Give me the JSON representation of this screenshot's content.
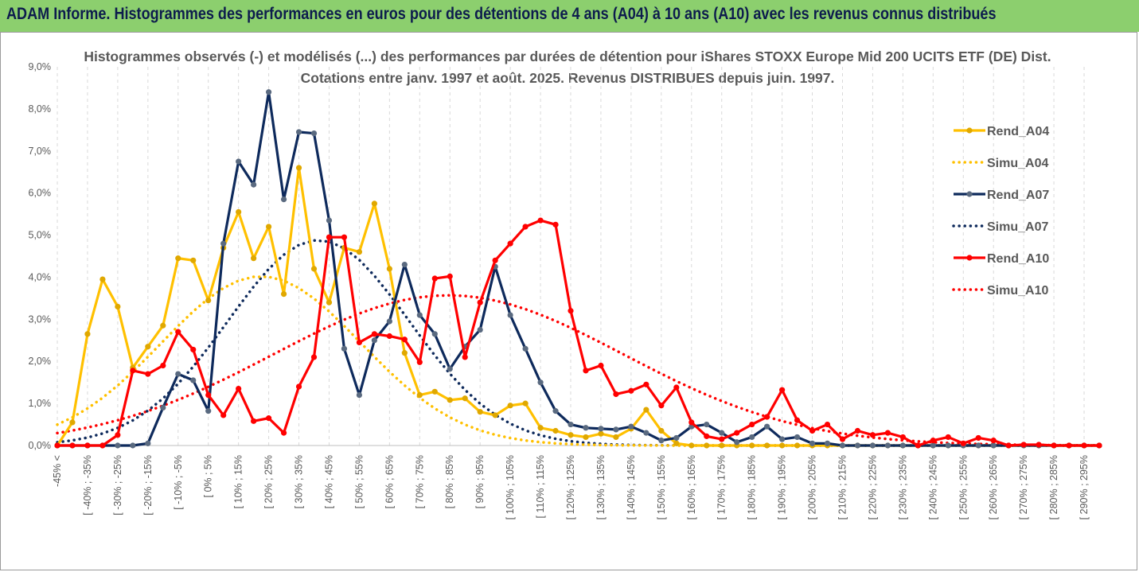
{
  "banner": {
    "title": "ADAM Informe. Histogrammes des performances en euros pour des détentions de 4 ans (A04) à 10 ans (A10) avec les revenus connus distribués"
  },
  "colors": {
    "banner_bg": "#8ccf6e",
    "banner_text": "#0d1c4d",
    "A04": "#ffc000",
    "A07": "#0e2a5c",
    "A10": "#ff0000",
    "grid": "#d9d9d9"
  },
  "chart_data": {
    "type": "line",
    "title": "Histogrammes observés (-) et modélisés (...) des performances par durées de détention pour iShares STOXX Europe Mid 200 UCITS ETF (DE) Dist.",
    "subtitle": "Cotations entre janv. 1997 et août. 2025. Revenus DISTRIBUES depuis juin. 1997.",
    "y_ticks": [
      "0,0%",
      "1,0%",
      "2,0%",
      "3,0%",
      "4,0%",
      "5,0%",
      "6,0%",
      "7,0%",
      "8,0%",
      "9,0%"
    ],
    "ylim": [
      0,
      9
    ],
    "y_unit": "%",
    "grid": "vertical dashed",
    "legend_position": "right",
    "x_labels_shown": [
      "-45% <",
      "[ -40% ; -35%",
      "[ -30% ; -25%",
      "[ -20% ; -15%",
      "[ -10% ; -5%",
      "[ 0% ; 5%",
      "[ 10% ; 15%",
      "[ 20% ; 25%",
      "[ 30% ; 35%",
      "[ 40% ; 45%",
      "[ 50% ; 55%",
      "[ 60% ; 65%",
      "[ 70% ; 75%",
      "[ 80% ; 85%",
      "[ 90% ; 95%",
      "[ 100% ; 105%",
      "[ 110% ; 115%",
      "[ 120% ; 125%",
      "[ 130% ; 135%",
      "[ 140% ; 145%",
      "[ 150% ; 155%",
      "[ 160% ; 165%",
      "[ 170% ; 175%",
      "[ 180% ; 185%",
      "[ 190% ; 195%",
      "[ 200% ; 205%",
      "[ 210% ; 215%",
      "[ 220% ; 225%",
      "[ 230% ; 235%",
      "[ 240% ; 245%",
      "[ 250% ; 255%",
      "[ 260% ; 265%",
      "[ 270% ; 275%",
      "[ 280% ; 285%",
      "[ 290% ; 295%"
    ],
    "x_category_count": 70,
    "series": [
      {
        "name": "Rend_A04",
        "style": "solid",
        "color": "#ffc000",
        "values": [
          0.0,
          0.55,
          2.65,
          3.95,
          3.3,
          1.85,
          2.35,
          2.85,
          4.45,
          4.4,
          3.45,
          4.7,
          5.55,
          4.45,
          5.2,
          3.6,
          6.6,
          4.2,
          3.4,
          4.7,
          4.6,
          5.75,
          4.2,
          2.2,
          1.2,
          1.28,
          1.08,
          1.12,
          0.8,
          0.72,
          0.95,
          1.0,
          0.42,
          0.35,
          0.25,
          0.2,
          0.28,
          0.2,
          0.4,
          0.85,
          0.35,
          0.05,
          0.0,
          0.0,
          0.0,
          0.0,
          0.0,
          0.0,
          0.0,
          0.0,
          0.0,
          0.0,
          0.0,
          0.0,
          0.0,
          0.0,
          0.0,
          0.0,
          0.0,
          0.0,
          0.0,
          0.0,
          0.0,
          0.0,
          0.0,
          0.0,
          0.0,
          0.0,
          0.0,
          0.0
        ]
      },
      {
        "name": "Simu_A04",
        "style": "dotted",
        "color": "#ffc000",
        "mean_pct": 20,
        "std_pct": 33,
        "peak": 4.02
      },
      {
        "name": "Rend_A07",
        "style": "solid",
        "color": "#0e2a5c",
        "values": [
          0.0,
          0.0,
          0.0,
          0.0,
          0.0,
          0.0,
          0.05,
          0.9,
          1.7,
          1.55,
          0.82,
          4.8,
          6.75,
          6.2,
          8.4,
          5.85,
          7.45,
          7.42,
          5.35,
          2.3,
          1.2,
          2.5,
          2.95,
          4.3,
          3.1,
          2.65,
          1.82,
          2.35,
          2.75,
          4.25,
          3.1,
          2.3,
          1.5,
          0.82,
          0.5,
          0.42,
          0.4,
          0.38,
          0.45,
          0.3,
          0.12,
          0.18,
          0.45,
          0.5,
          0.3,
          0.08,
          0.2,
          0.45,
          0.15,
          0.2,
          0.05,
          0.05,
          0.0,
          0.0,
          0.0,
          0.0,
          0.0,
          0.0,
          0.0,
          0.0,
          0.0,
          0.0,
          0.0,
          0.0,
          0.0,
          0.0,
          0.0,
          0.0,
          0.0,
          0.0
        ]
      },
      {
        "name": "Simu_A07",
        "style": "dotted",
        "color": "#0e2a5c",
        "mean_pct": 39,
        "std_pct": 30,
        "peak": 4.88
      },
      {
        "name": "Rend_A10",
        "style": "solid",
        "color": "#ff0000",
        "values": [
          0.0,
          0.0,
          0.0,
          0.0,
          0.25,
          1.78,
          1.7,
          1.9,
          2.7,
          2.28,
          1.2,
          0.72,
          1.35,
          0.58,
          0.65,
          0.3,
          1.4,
          2.1,
          4.95,
          4.95,
          2.45,
          2.65,
          2.6,
          2.52,
          1.98,
          3.97,
          4.02,
          2.1,
          3.4,
          4.4,
          4.8,
          5.2,
          5.35,
          5.25,
          3.2,
          1.78,
          1.9,
          1.22,
          1.3,
          1.45,
          0.95,
          1.38,
          0.55,
          0.22,
          0.15,
          0.3,
          0.5,
          0.68,
          1.32,
          0.6,
          0.35,
          0.5,
          0.15,
          0.35,
          0.25,
          0.3,
          0.2,
          0.0,
          0.12,
          0.2,
          0.05,
          0.18,
          0.12,
          0.0,
          0.02,
          0.02,
          0.0,
          0.0,
          0.0,
          0.0
        ]
      },
      {
        "name": "Simu_A10",
        "style": "dotted",
        "color": "#ff0000",
        "mean_pct": 82,
        "std_pct": 58,
        "peak": 3.57
      }
    ]
  }
}
